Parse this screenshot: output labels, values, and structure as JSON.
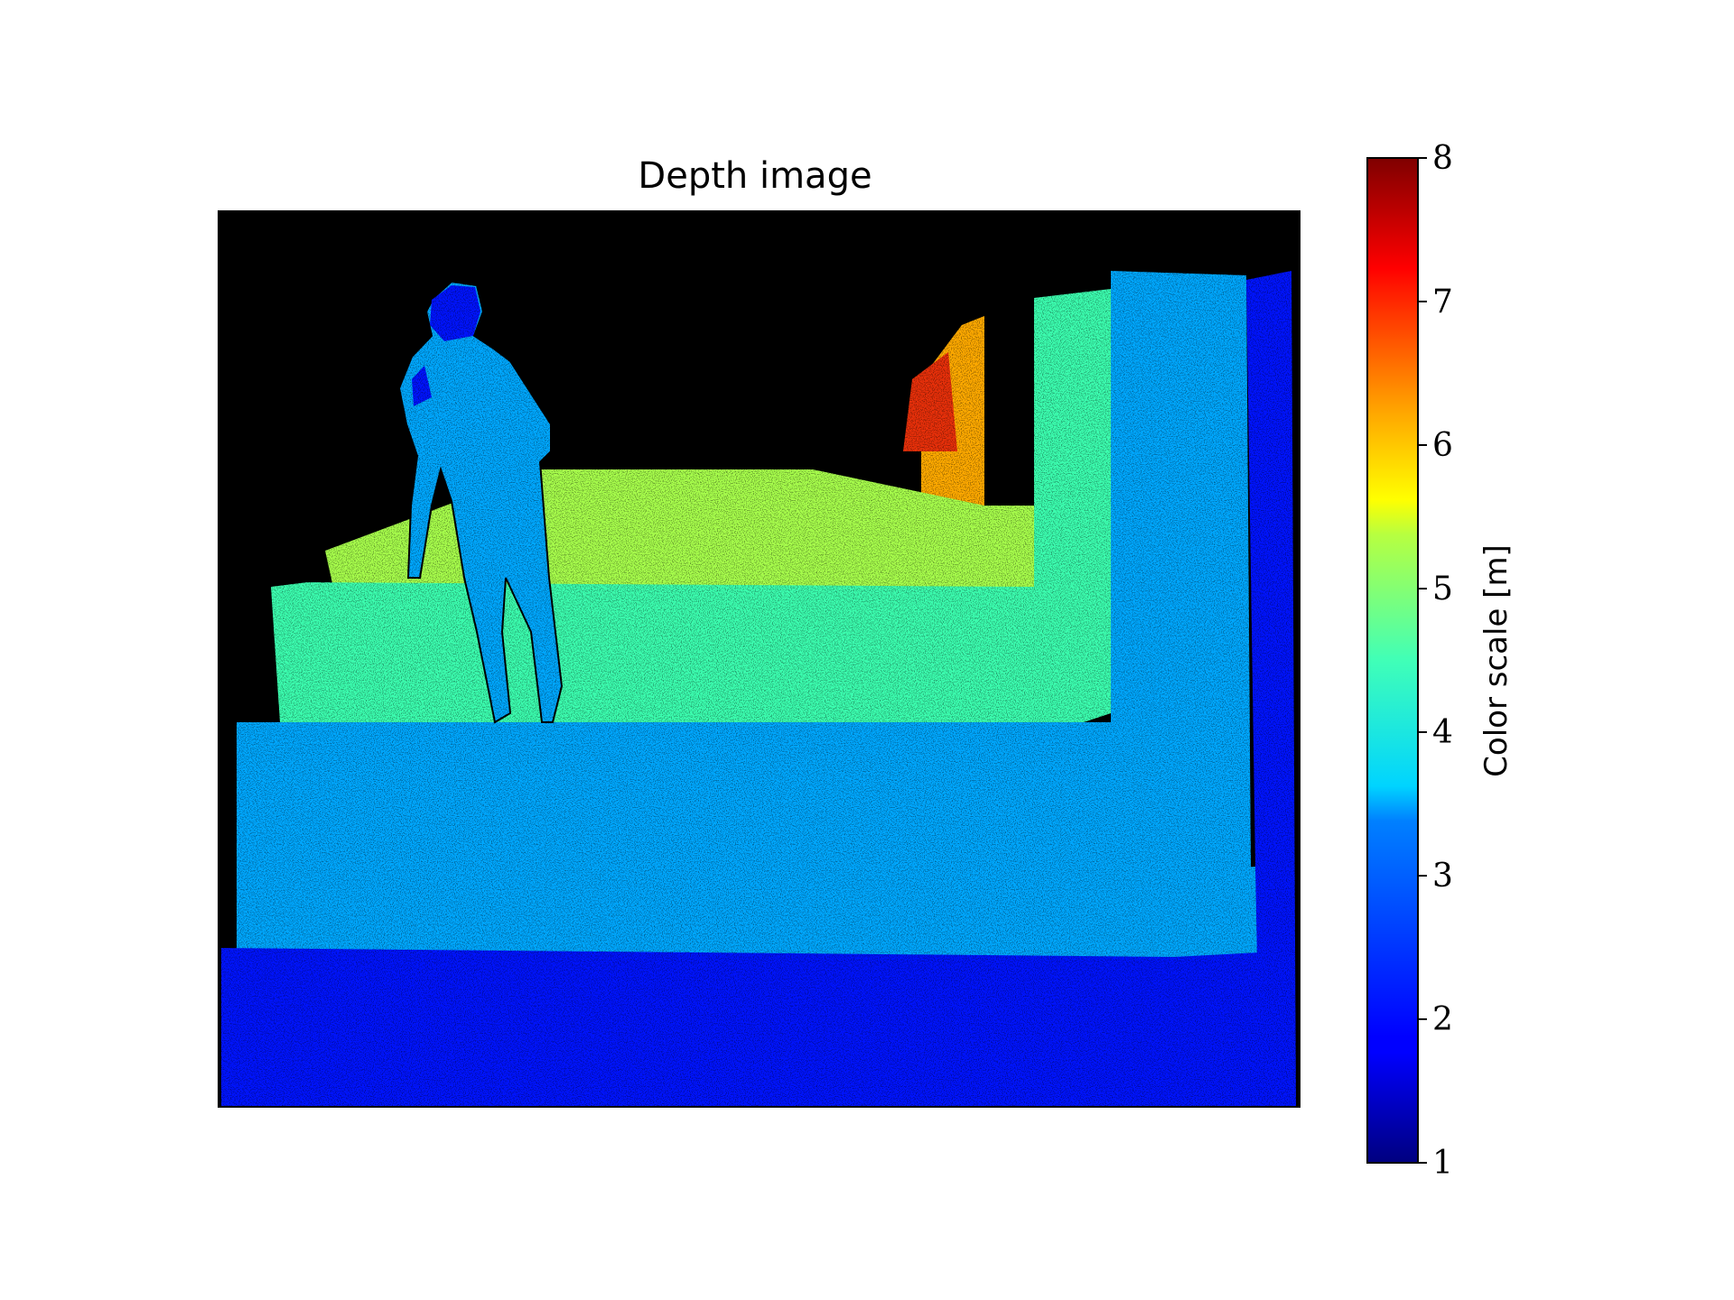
{
  "chart_data": {
    "type": "heatmap",
    "title": "Depth image",
    "xlabel": "",
    "ylabel": "",
    "colorbar": {
      "label": "Color scale [m]",
      "colormap": "jet",
      "range": [
        1,
        8
      ],
      "ticks": [
        "1",
        "2",
        "3",
        "4",
        "5",
        "6",
        "7",
        "8"
      ]
    },
    "no_data_color": "#000000",
    "regions": [
      {
        "name": "far wall upper",
        "depth_m": 6.0,
        "color": "#ffaa00"
      },
      {
        "name": "far wall corner",
        "depth_m": 6.8,
        "color": "#e8300a"
      },
      {
        "name": "back floor band",
        "depth_m": 5.0,
        "color": "#a8ff4c"
      },
      {
        "name": "middle floor band",
        "depth_m": 4.0,
        "color": "#3cffb0"
      },
      {
        "name": "right wall column",
        "depth_m": 3.0,
        "color": "#00a8ff"
      },
      {
        "name": "near floor band",
        "depth_m": 3.0,
        "color": "#00a8ff"
      },
      {
        "name": "person",
        "depth_m": 3.0,
        "color": "#00a8ff"
      },
      {
        "name": "foreground floor",
        "depth_m": 2.0,
        "color": "#0014ff"
      },
      {
        "name": "right edge column",
        "depth_m": 2.0,
        "color": "#0014ff"
      }
    ]
  }
}
